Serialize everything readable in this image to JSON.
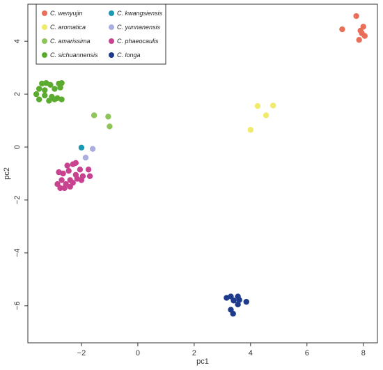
{
  "chart_data": {
    "type": "scatter",
    "title": "",
    "xlabel": "pc1",
    "ylabel": "pc2",
    "xlim": [
      -3.9,
      8.5
    ],
    "ylim": [
      -7.4,
      5.4
    ],
    "xticks": [
      -2,
      0,
      2,
      4,
      6,
      8
    ],
    "yticks": [
      -6,
      -4,
      -2,
      0,
      2,
      4
    ],
    "grid": false,
    "legend_placement": "top-left",
    "series": [
      {
        "name": "C. wenyujin",
        "color": "#e8705a",
        "points": [
          [
            7.75,
            4.95
          ],
          [
            7.25,
            4.45
          ],
          [
            7.9,
            4.4
          ],
          [
            8.0,
            4.55
          ],
          [
            7.95,
            4.3
          ],
          [
            8.05,
            4.2
          ],
          [
            7.85,
            4.05
          ]
        ]
      },
      {
        "name": "C. kwangsiensis",
        "color": "#1a98b4",
        "points": [
          [
            -2.0,
            -0.02
          ]
        ]
      },
      {
        "name": "C. aromatica",
        "color": "#f0eb6a",
        "points": [
          [
            4.25,
            1.55
          ],
          [
            4.8,
            1.57
          ],
          [
            4.55,
            1.2
          ],
          [
            4.0,
            0.65
          ]
        ]
      },
      {
        "name": "C. yunnanensis",
        "color": "#a9aede",
        "points": [
          [
            -1.6,
            -0.07
          ],
          [
            -1.85,
            -0.4
          ]
        ]
      },
      {
        "name": "C. amarissima",
        "color": "#8fc45b",
        "points": [
          [
            -1.55,
            1.2
          ],
          [
            -1.05,
            1.15
          ],
          [
            -1.0,
            0.78
          ]
        ]
      },
      {
        "name": "C. phaeocaulis",
        "color": "#c8428f",
        "points": [
          [
            -2.5,
            -0.7
          ],
          [
            -2.3,
            -0.65
          ],
          [
            -2.2,
            -0.6
          ],
          [
            -2.05,
            -0.85
          ],
          [
            -1.75,
            -0.85
          ],
          [
            -2.65,
            -1.0
          ],
          [
            -2.8,
            -0.95
          ],
          [
            -2.45,
            -0.9
          ],
          [
            -2.2,
            -1.05
          ],
          [
            -1.95,
            -1.1
          ],
          [
            -1.7,
            -1.1
          ],
          [
            -2.7,
            -1.25
          ],
          [
            -2.4,
            -1.25
          ],
          [
            -2.15,
            -1.2
          ],
          [
            -2.0,
            -1.25
          ],
          [
            -2.85,
            -1.4
          ],
          [
            -2.55,
            -1.4
          ],
          [
            -2.3,
            -1.35
          ],
          [
            -2.75,
            -1.55
          ],
          [
            -2.6,
            -1.55
          ],
          [
            -2.4,
            -1.5
          ]
        ]
      },
      {
        "name": "C. sichuannensis",
        "color": "#5aab2e",
        "points": [
          [
            -3.4,
            2.4
          ],
          [
            -3.25,
            2.42
          ],
          [
            -3.1,
            2.35
          ],
          [
            -2.8,
            2.4
          ],
          [
            -2.7,
            2.42
          ],
          [
            -3.5,
            2.2
          ],
          [
            -3.3,
            2.15
          ],
          [
            -2.95,
            2.2
          ],
          [
            -2.75,
            2.25
          ],
          [
            -3.6,
            2.0
          ],
          [
            -3.3,
            1.95
          ],
          [
            -3.05,
            1.9
          ],
          [
            -2.85,
            1.85
          ],
          [
            -2.7,
            1.8
          ],
          [
            -3.5,
            1.8
          ],
          [
            -3.15,
            1.75
          ],
          [
            -2.95,
            1.8
          ]
        ]
      },
      {
        "name": "C. longa",
        "color": "#1e3a8a",
        "points": [
          [
            3.15,
            -5.7
          ],
          [
            3.3,
            -5.65
          ],
          [
            3.55,
            -5.65
          ],
          [
            3.4,
            -5.8
          ],
          [
            3.6,
            -5.78
          ],
          [
            3.85,
            -5.85
          ],
          [
            3.55,
            -5.95
          ],
          [
            3.3,
            -6.15
          ],
          [
            3.38,
            -6.3
          ]
        ]
      }
    ]
  }
}
